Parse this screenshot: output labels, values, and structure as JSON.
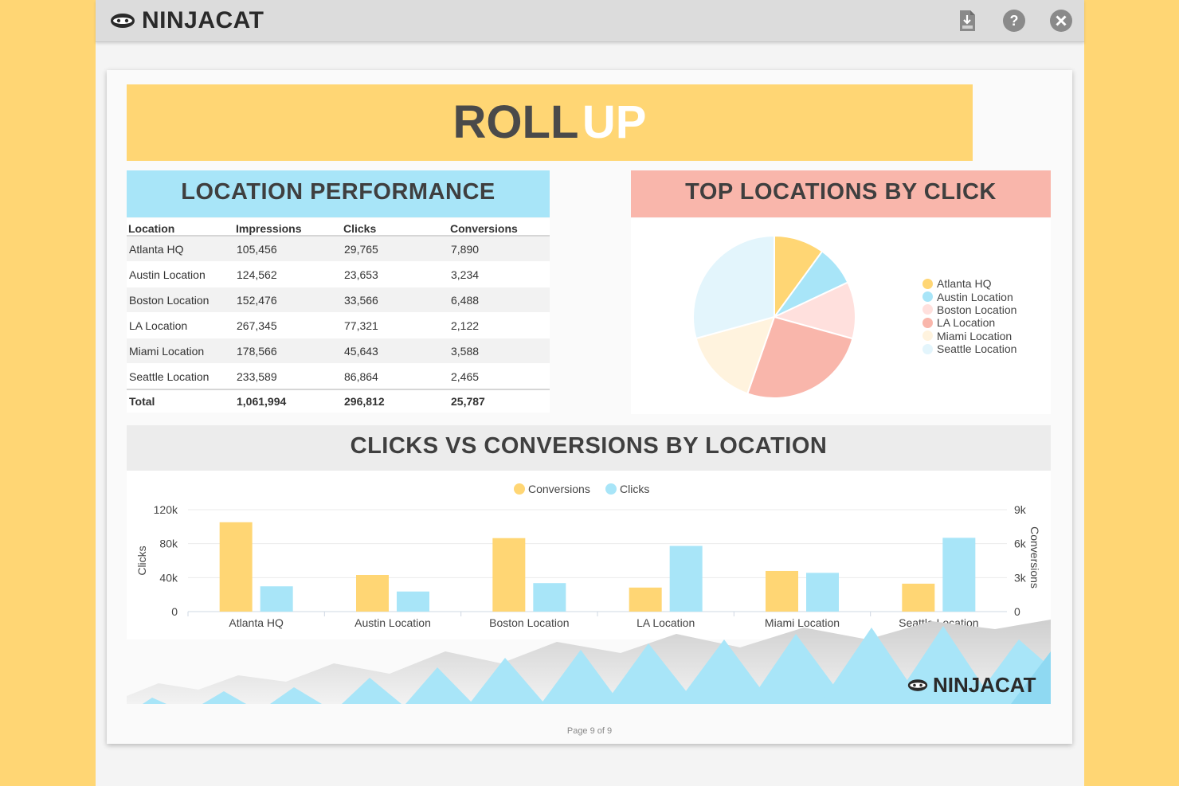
{
  "app": {
    "brand": "NINJACAT",
    "toolbar": {
      "pdf_icon": "pdf-download-icon",
      "help_icon": "help-icon",
      "close_icon": "close-icon"
    }
  },
  "page": {
    "banner": {
      "title_a": "ROLL",
      "title_b": "UP"
    },
    "location_performance": {
      "title": "LOCATION PERFORMANCE",
      "columns": [
        "Location",
        "Impressions",
        "Clicks",
        "Conversions"
      ],
      "rows": [
        [
          "Atlanta HQ",
          "105,456",
          "29,765",
          "7,890"
        ],
        [
          "Austin Location",
          "124,562",
          "23,653",
          "3,234"
        ],
        [
          "Boston Location",
          "152,476",
          "33,566",
          "6,488"
        ],
        [
          "LA Location",
          "267,345",
          "77,321",
          "2,122"
        ],
        [
          "Miami Location",
          "178,566",
          "45,643",
          "3,588"
        ],
        [
          "Seattle Location",
          "233,589",
          "86,864",
          "2,465"
        ]
      ],
      "total": [
        "Total",
        "1,061,994",
        "296,812",
        "25,787"
      ]
    },
    "top_locations": {
      "title": "TOP LOCATIONS BY CLICK"
    },
    "clicks_vs_conversions": {
      "title": "CLICKS VS CONVERSIONS BY LOCATION"
    },
    "footer_brand": "NINJACAT",
    "page_number": "Page 9 of 9"
  },
  "colors": {
    "yellow": "#FFD674",
    "blue": "#A8E5F8",
    "pink": "#FFE0DD",
    "salmon": "#F9B6AB",
    "cream": "#FFF3DE",
    "pale_blue": "#E3F5FC"
  },
  "chart_data": [
    {
      "type": "pie",
      "title": "TOP LOCATIONS BY CLICK",
      "categories": [
        "Atlanta HQ",
        "Austin Location",
        "Boston Location",
        "LA Location",
        "Miami Location",
        "Seattle Location"
      ],
      "values": [
        29765,
        23653,
        33566,
        77321,
        45643,
        86864
      ],
      "colors": [
        "#FFD674",
        "#A8E5F8",
        "#FFE0DD",
        "#F9B6AB",
        "#FFF3DE",
        "#E3F5FC"
      ],
      "legend": "right"
    },
    {
      "type": "bar",
      "title": "CLICKS VS CONVERSIONS BY LOCATION",
      "categories": [
        "Atlanta HQ",
        "Austin Location",
        "Boston Location",
        "LA Location",
        "Miami Location",
        "Seattle Location"
      ],
      "series": [
        {
          "name": "Conversions",
          "axis": "right",
          "color": "#FFD674",
          "values": [
            7890,
            3234,
            6488,
            2122,
            3588,
            2465
          ]
        },
        {
          "name": "Clicks",
          "axis": "left",
          "color": "#A8E5F8",
          "values": [
            29765,
            23653,
            33566,
            77321,
            45643,
            86864
          ]
        }
      ],
      "ylabel_left": "Clicks",
      "ylabel_right": "Conversions",
      "ylim_left": [
        0,
        120000
      ],
      "ylim_right": [
        0,
        9000
      ],
      "yticks_left": [
        "0",
        "40k",
        "80k",
        "120k"
      ],
      "yticks_right": [
        "0",
        "3k",
        "6k",
        "9k"
      ],
      "legend": "top-center",
      "grid": true
    }
  ]
}
